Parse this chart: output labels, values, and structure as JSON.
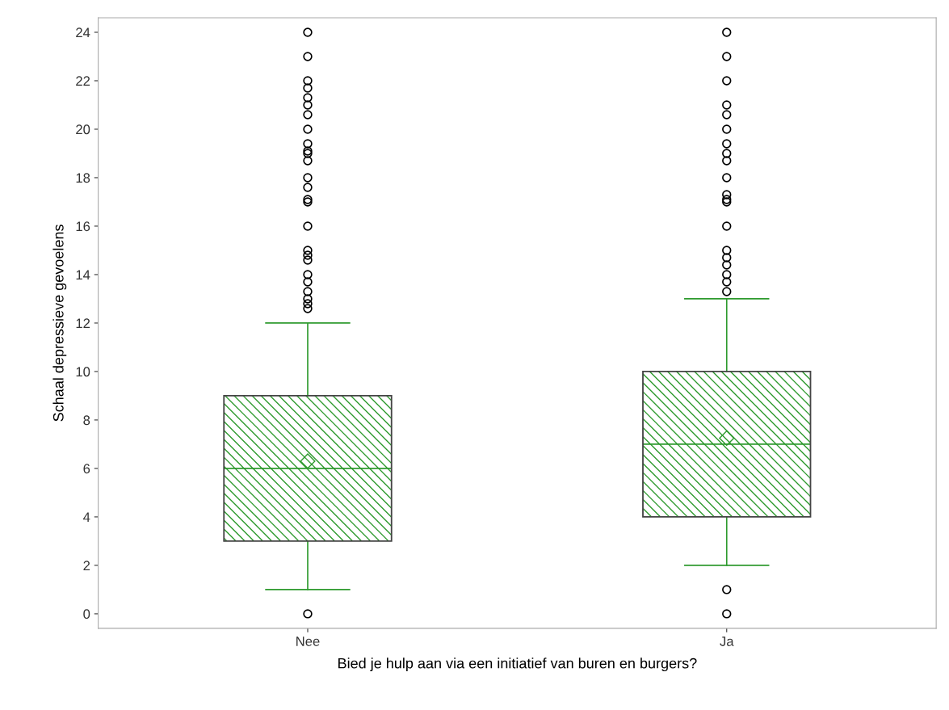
{
  "chart_data": {
    "type": "box",
    "xlabel": "Bied je hulp aan via een initiatief van buren en burgers?",
    "ylabel": "Schaal depressieve gevoelens",
    "categories": [
      "Nee",
      "Ja"
    ],
    "boxes": [
      {
        "low": 1,
        "q1": 3,
        "median": 6,
        "q3": 9,
        "high": 12,
        "mean": 6.3,
        "outliers": [
          0,
          12.6,
          12.8,
          13,
          13.3,
          13.7,
          14,
          14.6,
          14.8,
          15,
          16,
          17,
          17.1,
          17.6,
          18,
          18.7,
          19,
          19.1,
          19.4,
          20,
          20.6,
          21,
          21.3,
          21.7,
          22,
          23,
          24
        ]
      },
      {
        "low": 2,
        "q1": 4,
        "median": 7,
        "q3": 10,
        "high": 13,
        "mean": 7.25,
        "outliers": [
          0,
          1,
          13.3,
          13.7,
          14,
          14.4,
          14.7,
          15,
          16,
          17,
          17.1,
          17.3,
          18,
          18.7,
          19,
          19.4,
          20,
          20.6,
          21,
          22,
          23,
          24
        ]
      }
    ],
    "color": "#2e9a2e",
    "ylim": [
      -0.6,
      24.6
    ],
    "yticks": [
      0,
      2,
      4,
      6,
      8,
      10,
      12,
      14,
      16,
      18,
      20,
      22,
      24
    ],
    "grid": false,
    "legend": false
  }
}
